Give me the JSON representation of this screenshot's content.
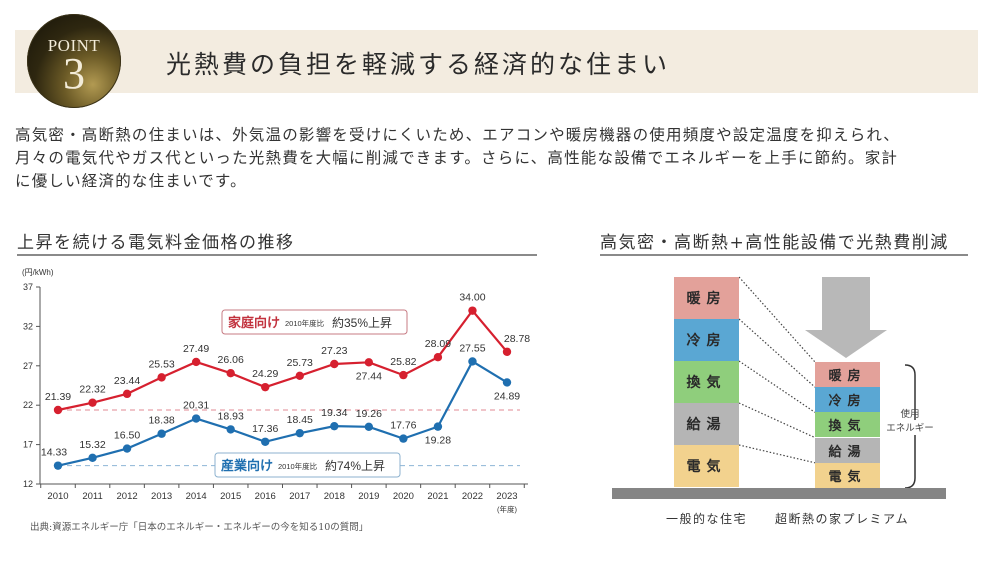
{
  "header": {
    "badge_word": "POINT",
    "badge_number": "3",
    "title": "光熱費の負担を軽減する経済的な住まい"
  },
  "intro": {
    "lines": [
      "高気密・高断熱の住まいは、外気温の影響を受けにくいため、エアコンや暖房機器の使用頻度や設定温度を抑えられ、",
      "月々の電気代やガス代といった光熱費を大幅に削減できます。さらに、高性能な設備でエネルギーを上手に節約。家計",
      "に優しい経済的な住まいです。"
    ]
  },
  "left_section": {
    "title": "上昇を続ける電気料金価格の推移",
    "source": "出典:資源エネルギー庁「日本のエネルギー・エネルギーの今を知る10の質問」"
  },
  "right_section": {
    "title": "高気密・高断熱+高性能設備で光熱費削減",
    "categories": [
      {
        "label": "暖房",
        "color": "#e3a19a"
      },
      {
        "label": "冷房",
        "color": "#5aa7d3"
      },
      {
        "label": "換気",
        "color": "#8fce7c"
      },
      {
        "label": "給湯",
        "color": "#b5b5b5"
      },
      {
        "label": "電気",
        "color": "#f2d28e"
      }
    ],
    "left_caption": "一般的な住宅",
    "right_caption": "超断熱の家プレミアム",
    "bracket_label_1": "使用",
    "bracket_label_2": "エネルギー"
  },
  "chart_data": {
    "type": "line",
    "title": "上昇を続ける電気料金価格の推移",
    "ylabel": "(円/kWh)",
    "xlabel": "(年度)",
    "ylim": [
      12,
      37
    ],
    "yticks": [
      12,
      17,
      22,
      27,
      32,
      37
    ],
    "x": [
      "2010",
      "2011",
      "2012",
      "2013",
      "2014",
      "2015",
      "2016",
      "2017",
      "2018",
      "2019",
      "2020",
      "2021",
      "2022",
      "2023"
    ],
    "grid": false,
    "series": [
      {
        "name": "家庭向け",
        "color": "#d6202f",
        "values": [
          21.39,
          22.32,
          23.44,
          25.53,
          27.49,
          26.06,
          24.29,
          25.73,
          27.23,
          27.44,
          25.82,
          28.09,
          34.0,
          28.78
        ],
        "value_labels": [
          "21.39",
          "22.32",
          "23.44",
          "25.53",
          "27.49",
          "26.06",
          "24.29",
          "25.73",
          "27.23",
          "27.44",
          "25.82",
          "28.09",
          "34.00",
          "28.78"
        ],
        "baseline": 21.39,
        "annotation": {
          "name": "家庭向け",
          "note": "2010年度比",
          "change": "約35%上昇"
        }
      },
      {
        "name": "産業向け",
        "color": "#1f6fb0",
        "values": [
          14.33,
          15.32,
          16.5,
          18.38,
          20.31,
          18.93,
          17.36,
          18.45,
          19.34,
          19.26,
          17.76,
          19.28,
          27.55,
          24.89
        ],
        "value_labels": [
          "14.33",
          "15.32",
          "16.50",
          "18.38",
          "20.31",
          "18.93",
          "17.36",
          "18.45",
          "19.34",
          "19.26",
          "17.76",
          "19.28",
          "27.55",
          "24.89"
        ],
        "baseline": 14.33,
        "annotation": {
          "name": "産業向け",
          "note": "2010年度比",
          "change": "約74%上昇"
        }
      }
    ]
  }
}
